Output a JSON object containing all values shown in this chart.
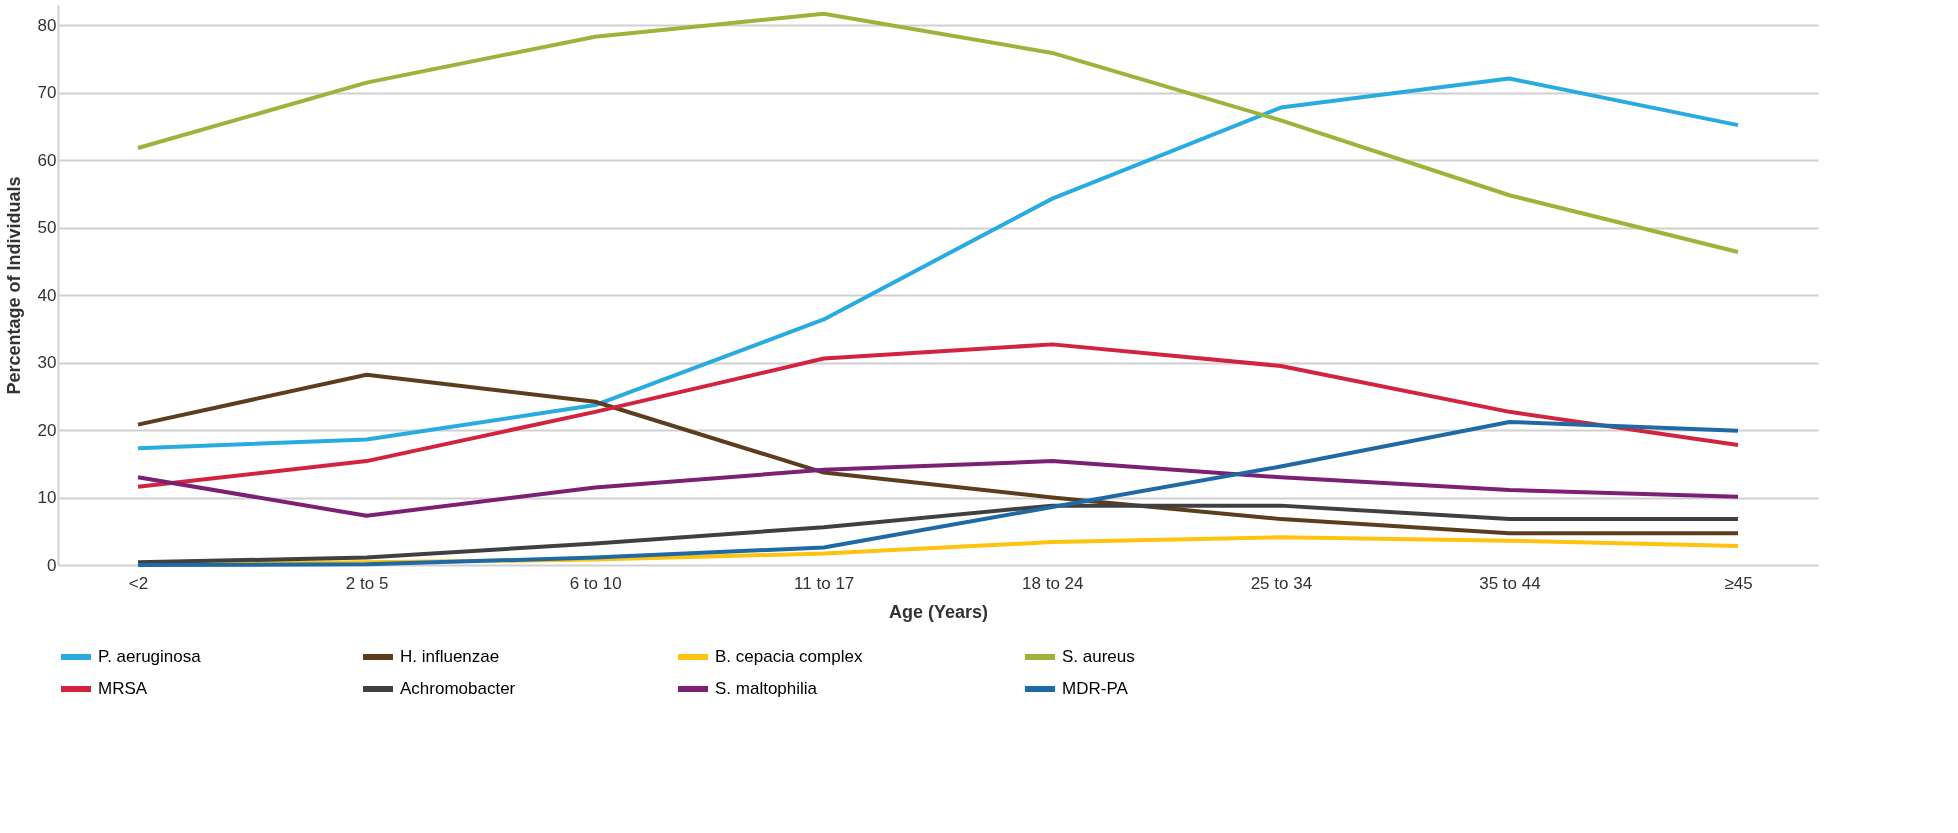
{
  "chart_data": {
    "type": "line",
    "xlabel": "Age (Years)",
    "ylabel": "Percentage of Individuals",
    "categories": [
      "<2",
      "2 to 5",
      "6 to 10",
      "11 to 17",
      "18 to 24",
      "25 to 34",
      "35 to 44",
      "≥45"
    ],
    "ylim": [
      0,
      83
    ],
    "yticks": [
      0,
      10,
      20,
      30,
      40,
      50,
      60,
      70,
      80
    ],
    "grid": "y",
    "legend": "bottom",
    "line_style": "solid",
    "marker": "none",
    "series": [
      {
        "name": "P. aeruginosa",
        "color": "#29abe2",
        "values": [
          17.3,
          18.6,
          23.7,
          36.4,
          54.3,
          67.8,
          72.1,
          65.2
        ]
      },
      {
        "name": "H. influenzae",
        "color": "#5c3d1e",
        "values": [
          20.8,
          28.2,
          24.2,
          13.7,
          10.0,
          6.8,
          4.7,
          4.7
        ]
      },
      {
        "name": "B. cepacia complex",
        "color": "#ffc20e",
        "values": [
          0.2,
          0.4,
          0.8,
          1.7,
          3.4,
          4.1,
          3.6,
          2.8
        ]
      },
      {
        "name": "S. aureus",
        "color": "#9bb53a",
        "values": [
          61.8,
          71.5,
          78.3,
          81.7,
          75.9,
          65.9,
          54.8,
          46.4
        ]
      },
      {
        "name": "MRSA",
        "color": "#d2233f",
        "values": [
          11.6,
          15.4,
          22.7,
          30.6,
          32.7,
          29.5,
          22.7,
          17.8
        ]
      },
      {
        "name": "Achromobacter",
        "color": "#404040",
        "values": [
          0.4,
          1.1,
          3.2,
          5.6,
          8.8,
          8.8,
          6.8,
          6.8
        ]
      },
      {
        "name": "S. maltophilia",
        "color": "#7b2072",
        "values": [
          13.0,
          7.3,
          11.5,
          14.1,
          15.4,
          13.0,
          11.1,
          10.1
        ]
      },
      {
        "name": "MDR-PA",
        "color": "#1f6aa5",
        "values": [
          0.0,
          0.1,
          1.1,
          2.6,
          8.6,
          14.6,
          21.2,
          19.9
        ]
      }
    ]
  }
}
